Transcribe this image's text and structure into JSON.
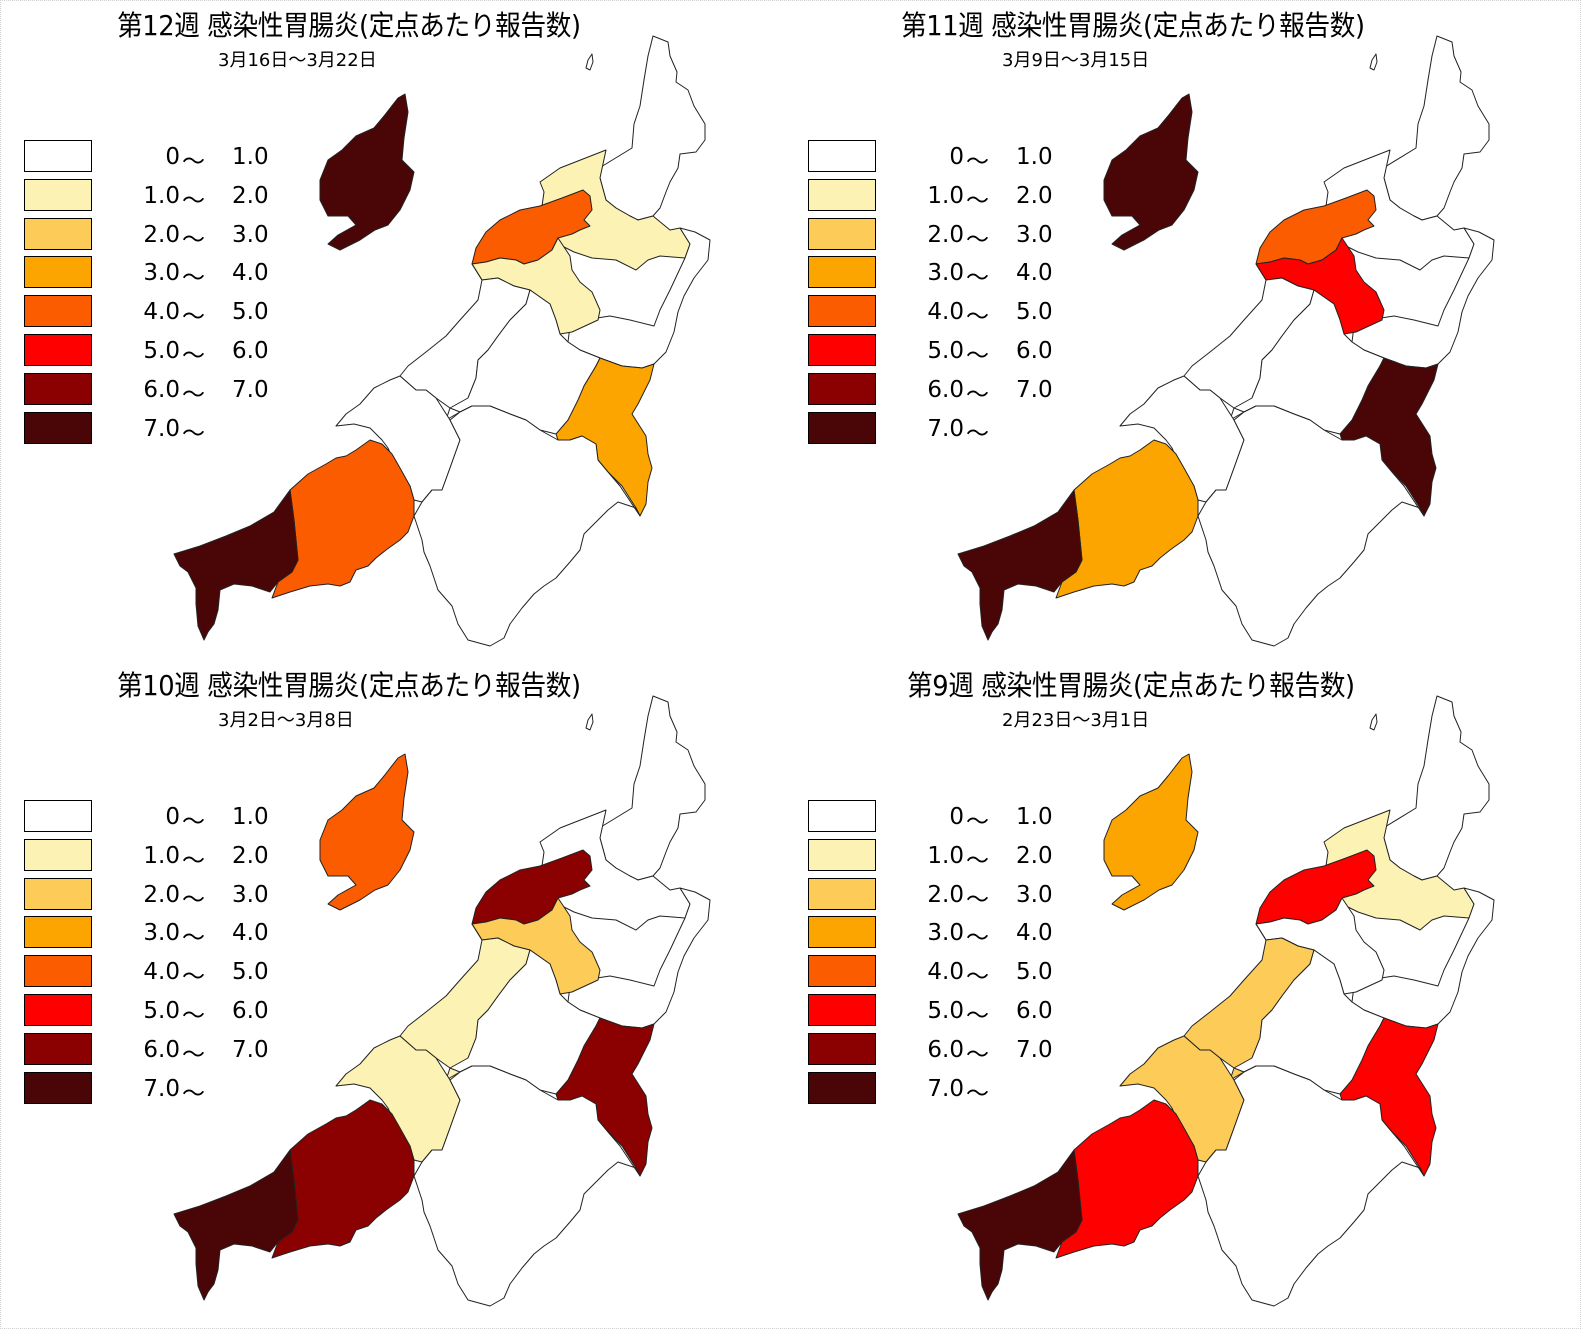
{
  "legend": {
    "classes": [
      {
        "lo": "0",
        "tilde": "～",
        "hi": "1.0",
        "color": "#ffffff"
      },
      {
        "lo": "1.0",
        "tilde": "～",
        "hi": "2.0",
        "color": "#fbf2b4"
      },
      {
        "lo": "2.0",
        "tilde": "～",
        "hi": "3.0",
        "color": "#fccb58"
      },
      {
        "lo": "3.0",
        "tilde": "～",
        "hi": "4.0",
        "color": "#fca400"
      },
      {
        "lo": "4.0",
        "tilde": "～",
        "hi": "5.0",
        "color": "#fc5c00"
      },
      {
        "lo": "5.0",
        "tilde": "～",
        "hi": "6.0",
        "color": "#ff0000"
      },
      {
        "lo": "6.0",
        "tilde": "～",
        "hi": "7.0",
        "color": "#8b0000"
      },
      {
        "lo": "7.0",
        "tilde": "～",
        "hi": "",
        "color": "#4a0606"
      }
    ]
  },
  "panels": [
    {
      "title": "第12週 感染性胃腸炎(定点あたり報告数)",
      "date": "3月16日～3月22日",
      "regions": {
        "sado": 7,
        "murakami": 0,
        "shibata": 1,
        "niigata": 4,
        "sanjo_north": 1,
        "tsubame": 0,
        "kashiwazaki": 0,
        "nagaoka": 0,
        "uonuma": 3,
        "minamiuonuma": 0,
        "joetsu": 4,
        "itoigawa": 7,
        "higashikanbara": 0
      }
    },
    {
      "title": "第11週 感染性胃腸炎(定点あたり報告数)",
      "date": "3月9日～3月15日",
      "regions": {
        "sado": 7,
        "murakami": 0,
        "shibata": 0,
        "niigata": 4,
        "sanjo_north": 5,
        "tsubame": 0,
        "kashiwazaki": 0,
        "nagaoka": 5,
        "uonuma": 7,
        "minamiuonuma": 0,
        "joetsu": 3,
        "itoigawa": 7,
        "higashikanbara": 0
      }
    },
    {
      "title": "第10週 感染性胃腸炎(定点あたり報告数)",
      "date": "3月2日～3月8日",
      "regions": {
        "sado": 4,
        "murakami": 0,
        "shibata": 0,
        "niigata": 6,
        "sanjo_north": 2,
        "tsubame": 1,
        "kashiwazaki": 0,
        "nagaoka": 3,
        "uonuma": 6,
        "minamiuonuma": 0,
        "joetsu": 6,
        "itoigawa": 7,
        "higashikanbara": 0
      }
    },
    {
      "title": "第9週 感染性胃腸炎(定点あたり報告数)",
      "date": "2月23日～3月1日",
      "regions": {
        "sado": 3,
        "murakami": 0,
        "shibata": 1,
        "niigata": 5,
        "sanjo_north": 0,
        "tsubame": 2,
        "kashiwazaki": 0,
        "nagaoka": 1,
        "uonuma": 5,
        "minamiuonuma": 0,
        "joetsu": 5,
        "itoigawa": 7,
        "higashikanbara": 0
      }
    }
  ]
}
